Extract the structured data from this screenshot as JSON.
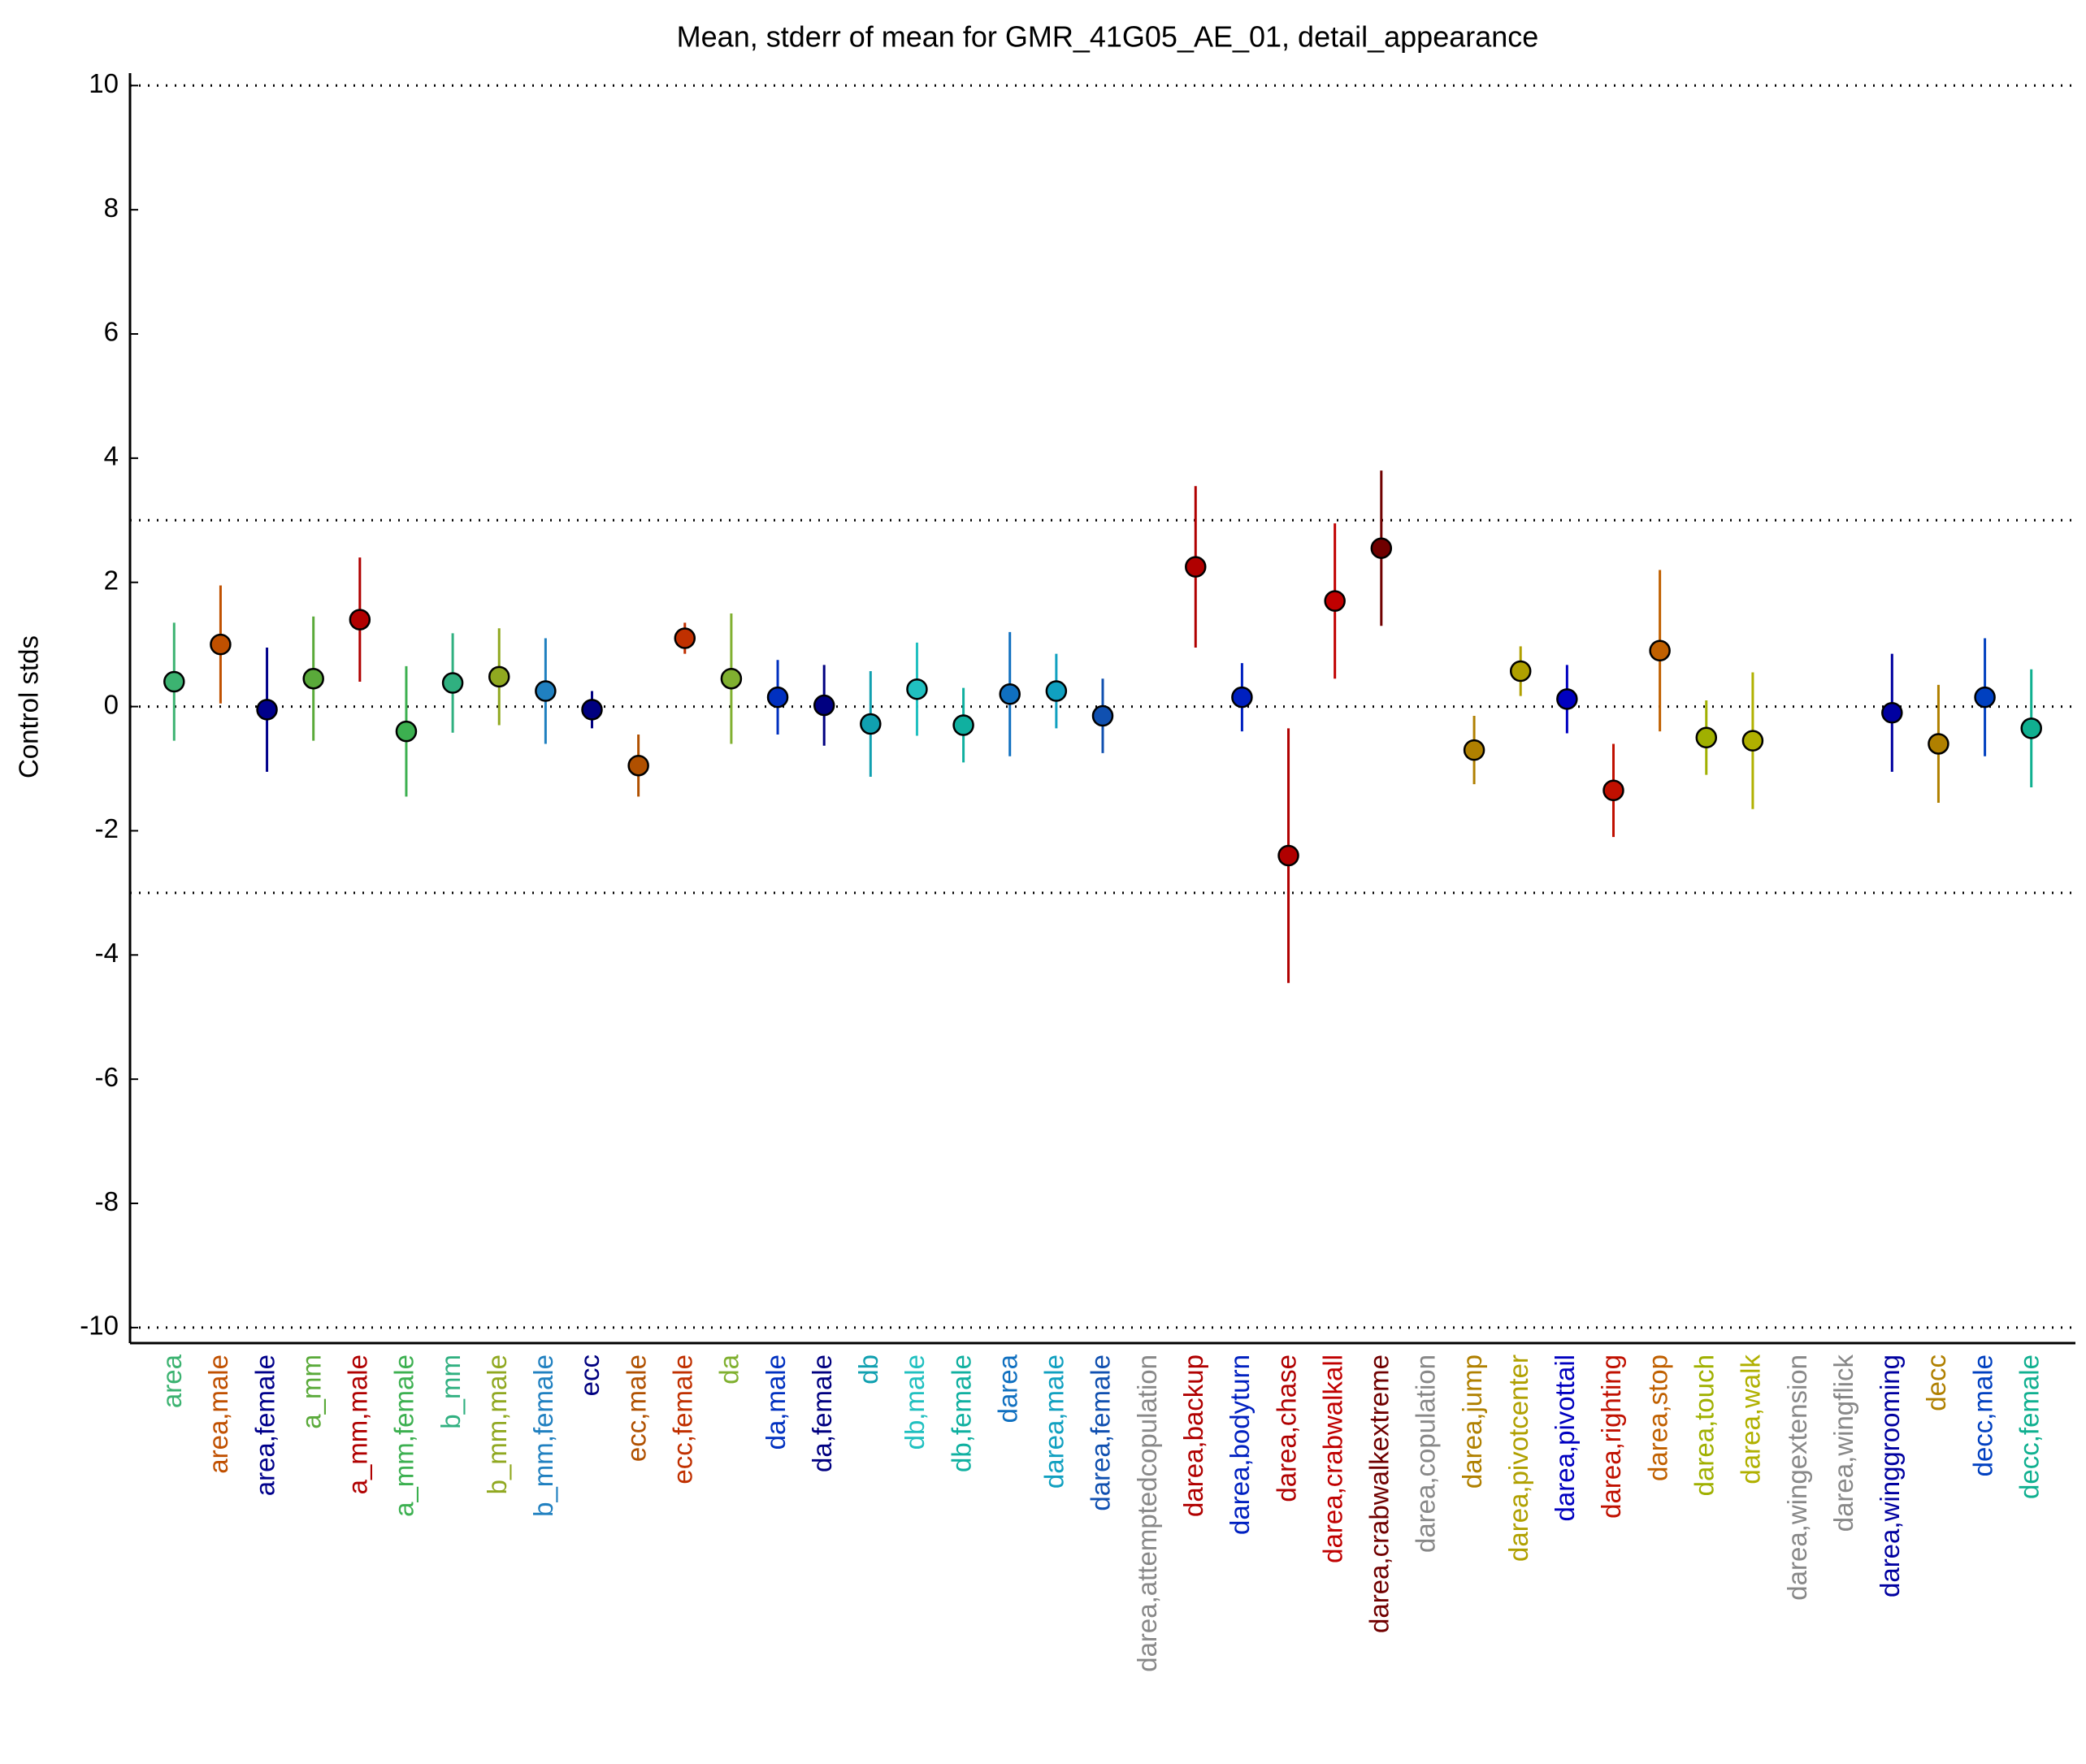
{
  "chart_data": {
    "type": "errorbar",
    "title": "Mean, stderr of mean for GMR_41G05_AE_01, detail_appearance",
    "ylabel": "Control stds",
    "ylim": [
      -10.25,
      10.2
    ],
    "yticks": [
      -10,
      -8,
      -6,
      -4,
      -2,
      0,
      2,
      4,
      6,
      8,
      10
    ],
    "reference_lines": [
      -10,
      -3,
      0,
      3,
      10
    ],
    "categories": [
      "area",
      "area,male",
      "area,female",
      "a_mm",
      "a_mm,male",
      "a_mm,female",
      "b_mm",
      "b_mm,male",
      "b_mm,female",
      "ecc",
      "ecc,male",
      "ecc,female",
      "da",
      "da,male",
      "da,female",
      "db",
      "db,male",
      "db,female",
      "darea",
      "darea,male",
      "darea,female",
      "darea,attemptedcopulation",
      "darea,backup",
      "darea,bodyturn",
      "darea,chase",
      "darea,crabwalkall",
      "darea,crabwalkextreme",
      "darea,copulation",
      "darea,jump",
      "darea,pivotcenter",
      "darea,pivottail",
      "darea,righting",
      "darea,stop",
      "darea,touch",
      "darea,walk",
      "darea,wingextension",
      "darea,wingflick",
      "darea,winggrooming",
      "decc",
      "decc,male",
      "decc,female"
    ],
    "colors": [
      "#3cb371",
      "#c05000",
      "#00008b",
      "#5aaa3a",
      "#b00000",
      "#3cb050",
      "#30b080",
      "#90a820",
      "#2080c0",
      "#000080",
      "#b05000",
      "#c03000",
      "#80b030",
      "#0030c0",
      "#000080",
      "#10a0b0",
      "#20c0c0",
      "#10b0a0",
      "#1070c0",
      "#10a0c0",
      "#1050b0",
      "#888888",
      "#b00000",
      "#0020c0",
      "#b00000",
      "#c00000",
      "#700000",
      "#888888",
      "#b08000",
      "#b0a000",
      "#0000c0",
      "#c01000",
      "#c06000",
      "#a0b000",
      "#b0b000",
      "#888888",
      "#888888",
      "#0000a0",
      "#b08000",
      "#0040c0",
      "#10b090"
    ],
    "series": [
      {
        "name": "mean",
        "values": [
          0.4,
          1.0,
          -0.05,
          0.45,
          1.4,
          -0.4,
          0.38,
          0.48,
          0.25,
          -0.05,
          -0.95,
          1.1,
          0.45,
          0.15,
          0.02,
          -0.28,
          0.28,
          -0.3,
          0.2,
          0.25,
          -0.15,
          null,
          2.25,
          0.15,
          -2.4,
          1.7,
          2.55,
          null,
          -0.7,
          0.57,
          0.12,
          -1.35,
          0.9,
          -0.5,
          -0.55,
          null,
          null,
          -0.1,
          -0.6,
          0.15,
          -0.35
        ],
        "errors": [
          0.95,
          0.95,
          1.0,
          1.0,
          1.0,
          1.05,
          0.8,
          0.78,
          0.85,
          0.3,
          0.5,
          0.25,
          1.05,
          0.6,
          0.65,
          0.85,
          0.75,
          0.6,
          1.0,
          0.6,
          0.6,
          null,
          1.3,
          0.55,
          2.05,
          1.25,
          1.25,
          null,
          0.55,
          0.4,
          0.55,
          0.75,
          1.3,
          0.6,
          1.1,
          null,
          null,
          0.95,
          0.95,
          0.95,
          0.95
        ]
      }
    ]
  }
}
